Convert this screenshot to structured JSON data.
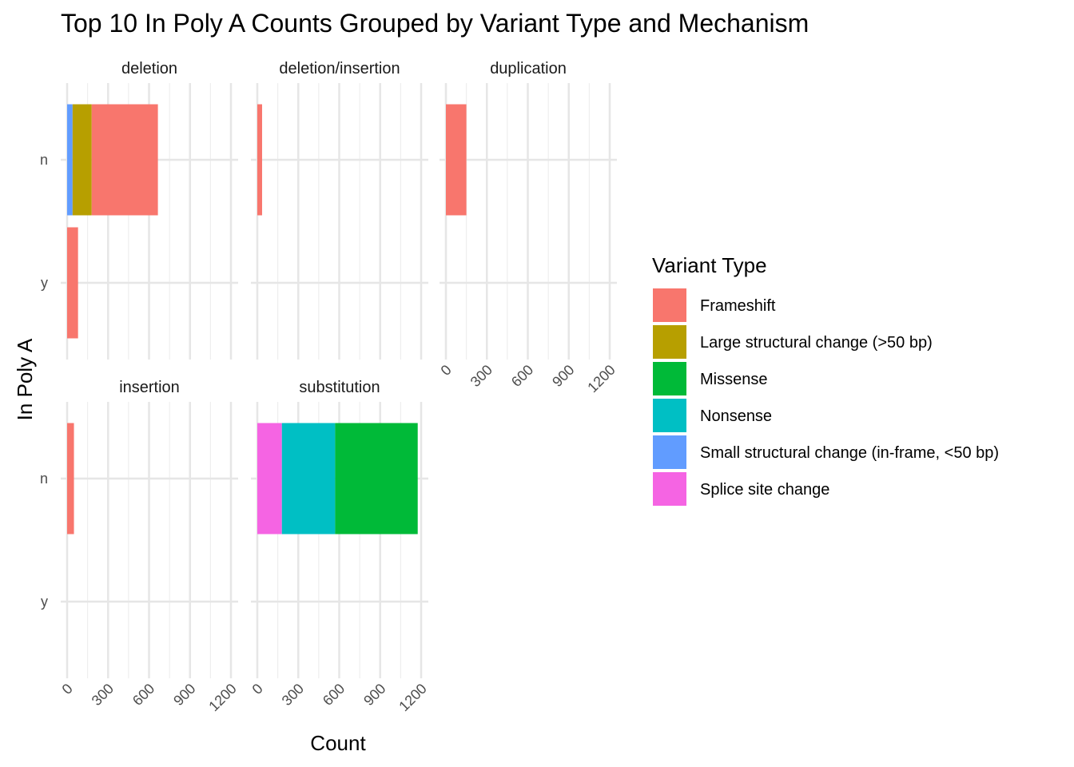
{
  "chart_data": {
    "type": "bar",
    "orientation": "horizontal",
    "stacked": true,
    "title": "Top 10 In Poly A Counts Grouped by Variant Type and Mechanism",
    "xlabel": "Count",
    "ylabel": "In Poly A",
    "xlim": [
      0,
      1200
    ],
    "x_ticks": [
      "0",
      "300",
      "600",
      "900",
      "1200"
    ],
    "categories": [
      "n",
      "y"
    ],
    "grid": true,
    "legend": {
      "title": "Variant Type",
      "placement": "right",
      "entries": [
        {
          "name": "Frameshift",
          "color": "#F8766D"
        },
        {
          "name": "Large structural change (>50 bp)",
          "color": "#B79F00"
        },
        {
          "name": "Missense",
          "color": "#00BA38"
        },
        {
          "name": "Nonsense",
          "color": "#00BFC4"
        },
        {
          "name": "Small structural change (in-frame, <50 bp)",
          "color": "#619CFF"
        },
        {
          "name": "Splice site change",
          "color": "#F564E3"
        }
      ]
    },
    "facets": [
      {
        "name": "deletion",
        "show_x_ticks": false,
        "show_y_ticks": true,
        "bars": [
          {
            "category": "n",
            "segments": [
              {
                "type": "Small structural change (in-frame, <50 bp)",
                "value": 40
              },
              {
                "type": "Large structural change (>50 bp)",
                "value": 140
              },
              {
                "type": "Frameshift",
                "value": 485
              }
            ]
          },
          {
            "category": "y",
            "segments": [
              {
                "type": "Frameshift",
                "value": 80
              }
            ]
          }
        ]
      },
      {
        "name": "deletion/insertion",
        "show_x_ticks": false,
        "show_y_ticks": false,
        "bars": [
          {
            "category": "n",
            "segments": [
              {
                "type": "Frameshift",
                "value": 35
              }
            ]
          }
        ]
      },
      {
        "name": "duplication",
        "show_x_ticks": true,
        "show_y_ticks": false,
        "bars": [
          {
            "category": "n",
            "segments": [
              {
                "type": "Frameshift",
                "value": 150
              }
            ]
          }
        ]
      },
      {
        "name": "insertion",
        "show_x_ticks": true,
        "show_y_ticks": true,
        "bars": [
          {
            "category": "n",
            "segments": [
              {
                "type": "Frameshift",
                "value": 50
              }
            ]
          }
        ]
      },
      {
        "name": "substitution",
        "show_x_ticks": true,
        "show_y_ticks": false,
        "bars": [
          {
            "category": "n",
            "segments": [
              {
                "type": "Splice site change",
                "value": 180
              },
              {
                "type": "Nonsense",
                "value": 390
              },
              {
                "type": "Missense",
                "value": 605
              }
            ]
          }
        ]
      }
    ]
  }
}
